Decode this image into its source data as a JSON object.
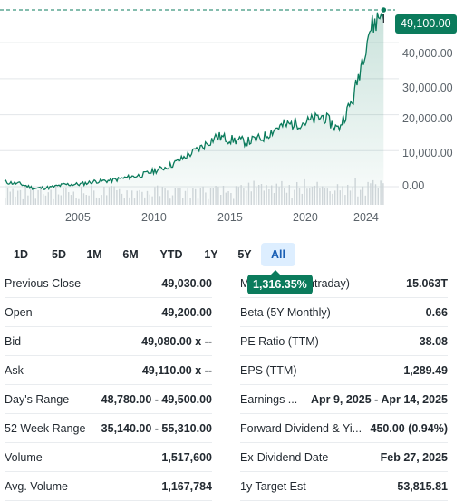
{
  "chart_data": {
    "type": "area",
    "x": [
      2000,
      2001,
      2002,
      2003,
      2004,
      2005,
      2006,
      2007,
      2008,
      2009,
      2010,
      2011,
      2012,
      2013,
      2014,
      2015,
      2016,
      2017,
      2018,
      2019,
      2020,
      2021,
      2022,
      2023,
      2024,
      2025
    ],
    "values": [
      1300,
      800,
      -500,
      -200,
      600,
      700,
      1500,
      1700,
      2500,
      3200,
      4500,
      6000,
      8500,
      11000,
      14000,
      13000,
      12500,
      13500,
      16500,
      17500,
      18000,
      19500,
      16000,
      24500,
      43000,
      49100
    ],
    "ylim": [
      -4000,
      52000
    ],
    "yticks": [
      "40,000.00",
      "30,000.00",
      "20,000.00",
      "10,000.00",
      "0.00"
    ],
    "ytick_values": [
      40000,
      30000,
      20000,
      10000,
      0
    ],
    "xticks": [
      "2005",
      "2010",
      "2015",
      "2020",
      "2024"
    ],
    "xtick_values": [
      2005,
      2010,
      2015,
      2020,
      2024
    ],
    "grid": true,
    "line_color": "#0b7b5c",
    "last_price": "49,100.00",
    "last_value": 49100
  },
  "ranges": [
    "1D",
    "5D",
    "1M",
    "6M",
    "YTD",
    "1Y",
    "5Y",
    "All"
  ],
  "active_range": "All",
  "tooltip": "1,316.35%",
  "stats_left": [
    {
      "label": "Previous Close",
      "value": "49,030.00"
    },
    {
      "label": "Open",
      "value": "49,200.00"
    },
    {
      "label": "Bid",
      "value": "49,080.00 x --"
    },
    {
      "label": "Ask",
      "value": "49,110.00 x --"
    },
    {
      "label": "Day's Range",
      "value": "48,780.00 - 49,500.00"
    },
    {
      "label": "52 Week Range",
      "value": "35,140.00 - 55,310.00"
    },
    {
      "label": "Volume",
      "value": "1,517,600"
    },
    {
      "label": "Avg. Volume",
      "value": "1,167,784"
    }
  ],
  "stats_right": [
    {
      "label": "Market Cap (intraday)",
      "value": "15.063T"
    },
    {
      "label": "Beta (5Y Monthly)",
      "value": "0.66"
    },
    {
      "label": "PE Ratio (TTM)",
      "value": "38.08"
    },
    {
      "label": "EPS (TTM)",
      "value": "1,289.49"
    },
    {
      "label": "Earnings ...",
      "value": "Apr 9, 2025 - Apr 14, 2025"
    },
    {
      "label": "Forward Dividend & Yi...",
      "value": "450.00 (0.94%)"
    },
    {
      "label": "Ex-Dividend Date",
      "value": "Feb 27, 2025"
    },
    {
      "label": "1y Target Est",
      "value": "53,815.81"
    }
  ]
}
